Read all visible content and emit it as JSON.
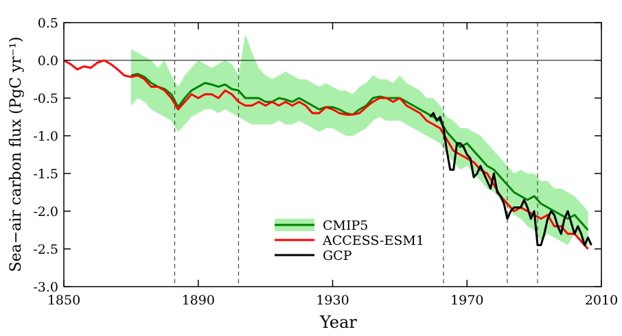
{
  "chart_data": {
    "type": "line",
    "xlabel": "Year",
    "ylabel": "Sea−air carbon flux (PgC yr⁻¹)",
    "xlim": [
      1850,
      2010
    ],
    "xticks": [
      1850,
      1890,
      1930,
      1970,
      2010
    ],
    "ylim": [
      -3.0,
      0.5
    ],
    "yticks": [
      0.5,
      {
        "value": 0,
        "label": "0.0"
      },
      -0.5,
      {
        "value": -1,
        "label": "-1.0"
      },
      -1.5,
      {
        "value": -2,
        "label": "-2.0"
      },
      -2.5,
      {
        "value": -3,
        "label": "-3.0"
      }
    ],
    "hline": 0,
    "vlines": [
      1883,
      1902,
      1963,
      1982,
      1991
    ],
    "series": [
      {
        "name": "CMIP5",
        "color": "#008000",
        "band_color": "#aaf0aa",
        "x": [
          1870,
          1872,
          1874,
          1876,
          1878,
          1880,
          1882,
          1884,
          1886,
          1888,
          1890,
          1892,
          1894,
          1896,
          1898,
          1900,
          1902,
          1904,
          1906,
          1908,
          1910,
          1912,
          1914,
          1916,
          1918,
          1920,
          1922,
          1924,
          1926,
          1928,
          1930,
          1932,
          1934,
          1936,
          1938,
          1940,
          1942,
          1944,
          1946,
          1948,
          1950,
          1952,
          1954,
          1956,
          1958,
          1960,
          1962,
          1964,
          1966,
          1968,
          1970,
          1972,
          1974,
          1976,
          1978,
          1980,
          1982,
          1984,
          1986,
          1988,
          1990,
          1992,
          1994,
          1996,
          1998,
          2000,
          2002,
          2004,
          2006
        ],
        "values": [
          -0.2,
          -0.18,
          -0.22,
          -0.3,
          -0.35,
          -0.38,
          -0.45,
          -0.62,
          -0.5,
          -0.4,
          -0.35,
          -0.3,
          -0.32,
          -0.35,
          -0.32,
          -0.38,
          -0.4,
          -0.5,
          -0.5,
          -0.5,
          -0.55,
          -0.55,
          -0.5,
          -0.52,
          -0.55,
          -0.5,
          -0.55,
          -0.6,
          -0.65,
          -0.62,
          -0.62,
          -0.65,
          -0.7,
          -0.72,
          -0.65,
          -0.6,
          -0.5,
          -0.48,
          -0.5,
          -0.5,
          -0.5,
          -0.55,
          -0.6,
          -0.65,
          -0.7,
          -0.75,
          -0.8,
          -0.95,
          -1.05,
          -1.15,
          -1.1,
          -1.2,
          -1.3,
          -1.4,
          -1.45,
          -1.55,
          -1.65,
          -1.75,
          -1.8,
          -1.85,
          -1.8,
          -1.9,
          -1.95,
          -2.0,
          -2.05,
          -2.1,
          -2.05,
          -2.15,
          -2.25
        ],
        "upper": [
          0.15,
          0.1,
          0.05,
          0.0,
          -0.1,
          0.0,
          -0.2,
          -0.35,
          -0.2,
          -0.1,
          0.0,
          -0.05,
          -0.1,
          -0.05,
          0.0,
          -0.05,
          -0.2,
          0.35,
          0.1,
          -0.1,
          -0.2,
          -0.25,
          -0.2,
          -0.15,
          -0.2,
          -0.25,
          -0.25,
          -0.3,
          -0.35,
          -0.3,
          -0.35,
          -0.4,
          -0.4,
          -0.45,
          -0.35,
          -0.3,
          -0.2,
          -0.25,
          -0.25,
          -0.3,
          -0.2,
          -0.3,
          -0.35,
          -0.4,
          -0.5,
          -0.5,
          -0.6,
          -0.75,
          -0.8,
          -0.9,
          -0.9,
          -0.95,
          -1.0,
          -1.1,
          -1.2,
          -1.3,
          -1.4,
          -1.5,
          -1.45,
          -1.5,
          -1.5,
          -1.6,
          -1.6,
          -1.7,
          -1.7,
          -1.75,
          -1.8,
          -1.9,
          -2.0
        ],
        "lower": [
          -0.6,
          -0.5,
          -0.55,
          -0.65,
          -0.7,
          -0.75,
          -0.8,
          -0.95,
          -0.85,
          -0.75,
          -0.7,
          -0.65,
          -0.65,
          -0.7,
          -0.65,
          -0.7,
          -0.75,
          -0.8,
          -0.85,
          -0.85,
          -0.85,
          -0.85,
          -0.8,
          -0.85,
          -0.85,
          -0.8,
          -0.85,
          -0.9,
          -0.95,
          -0.9,
          -0.9,
          -0.95,
          -1.0,
          -1.0,
          -0.95,
          -0.9,
          -0.8,
          -0.75,
          -0.8,
          -0.8,
          -0.8,
          -0.85,
          -0.9,
          -0.95,
          -1.0,
          -1.05,
          -1.1,
          -1.25,
          -1.35,
          -1.45,
          -1.4,
          -1.5,
          -1.6,
          -1.7,
          -1.75,
          -1.85,
          -1.95,
          -2.05,
          -2.1,
          -2.2,
          -2.25,
          -2.4,
          -2.3,
          -2.35,
          -2.4,
          -2.45,
          -2.3,
          -2.4,
          -2.5
        ]
      },
      {
        "name": "ACCESS-ESM1",
        "color": "#ff0000",
        "x": [
          1850,
          1852,
          1854,
          1856,
          1858,
          1860,
          1862,
          1864,
          1866,
          1868,
          1870,
          1872,
          1874,
          1876,
          1878,
          1880,
          1882,
          1884,
          1886,
          1888,
          1890,
          1892,
          1894,
          1896,
          1898,
          1900,
          1902,
          1904,
          1906,
          1908,
          1910,
          1912,
          1914,
          1916,
          1918,
          1920,
          1922,
          1924,
          1926,
          1928,
          1930,
          1932,
          1934,
          1936,
          1938,
          1940,
          1942,
          1944,
          1946,
          1948,
          1950,
          1952,
          1954,
          1956,
          1958,
          1960,
          1962,
          1964,
          1966,
          1968,
          1970,
          1972,
          1974,
          1976,
          1978,
          1980,
          1982,
          1984,
          1986,
          1988,
          1990,
          1992,
          1994,
          1996,
          1998,
          2000,
          2002,
          2004,
          2006
        ],
        "values": [
          0.0,
          -0.05,
          -0.12,
          -0.08,
          -0.1,
          -0.03,
          0.0,
          -0.05,
          -0.12,
          -0.2,
          -0.22,
          -0.2,
          -0.25,
          -0.35,
          -0.35,
          -0.4,
          -0.5,
          -0.65,
          -0.55,
          -0.45,
          -0.5,
          -0.45,
          -0.45,
          -0.5,
          -0.4,
          -0.45,
          -0.55,
          -0.6,
          -0.6,
          -0.55,
          -0.6,
          -0.55,
          -0.6,
          -0.55,
          -0.6,
          -0.55,
          -0.6,
          -0.7,
          -0.7,
          -0.62,
          -0.65,
          -0.7,
          -0.72,
          -0.72,
          -0.7,
          -0.62,
          -0.55,
          -0.5,
          -0.5,
          -0.55,
          -0.5,
          -0.6,
          -0.65,
          -0.7,
          -0.8,
          -0.85,
          -0.9,
          -1.05,
          -1.2,
          -1.25,
          -1.3,
          -1.35,
          -1.45,
          -1.5,
          -1.65,
          -1.8,
          -1.9,
          -2.0,
          -1.95,
          -2.0,
          -2.05,
          -2.1,
          -2.05,
          -2.2,
          -2.2,
          -2.3,
          -2.3,
          -2.4,
          -2.5
        ]
      },
      {
        "name": "GCP",
        "color": "#000000",
        "x": [
          1959,
          1960,
          1961,
          1962,
          1963,
          1964,
          1965,
          1966,
          1967,
          1968,
          1969,
          1970,
          1971,
          1972,
          1973,
          1974,
          1975,
          1976,
          1977,
          1978,
          1979,
          1980,
          1981,
          1982,
          1983,
          1984,
          1985,
          1986,
          1987,
          1988,
          1989,
          1990,
          1991,
          1992,
          1993,
          1994,
          1995,
          1996,
          1997,
          1998,
          1999,
          2000,
          2001,
          2002,
          2003,
          2004,
          2005,
          2006,
          2007
        ],
        "values": [
          -0.75,
          -0.7,
          -0.8,
          -0.75,
          -0.9,
          -1.2,
          -1.45,
          -1.45,
          -1.1,
          -1.1,
          -1.15,
          -1.25,
          -1.3,
          -1.55,
          -1.5,
          -1.4,
          -1.5,
          -1.6,
          -1.7,
          -1.5,
          -1.75,
          -1.8,
          -1.9,
          -2.1,
          -2.0,
          -1.95,
          -1.95,
          -1.95,
          -1.85,
          -1.95,
          -2.1,
          -2.0,
          -2.45,
          -2.45,
          -2.3,
          -2.1,
          -2.0,
          -2.05,
          -2.2,
          -2.3,
          -2.1,
          -2.0,
          -2.15,
          -2.3,
          -2.2,
          -2.3,
          -2.45,
          -2.35,
          -2.45
        ]
      }
    ]
  }
}
